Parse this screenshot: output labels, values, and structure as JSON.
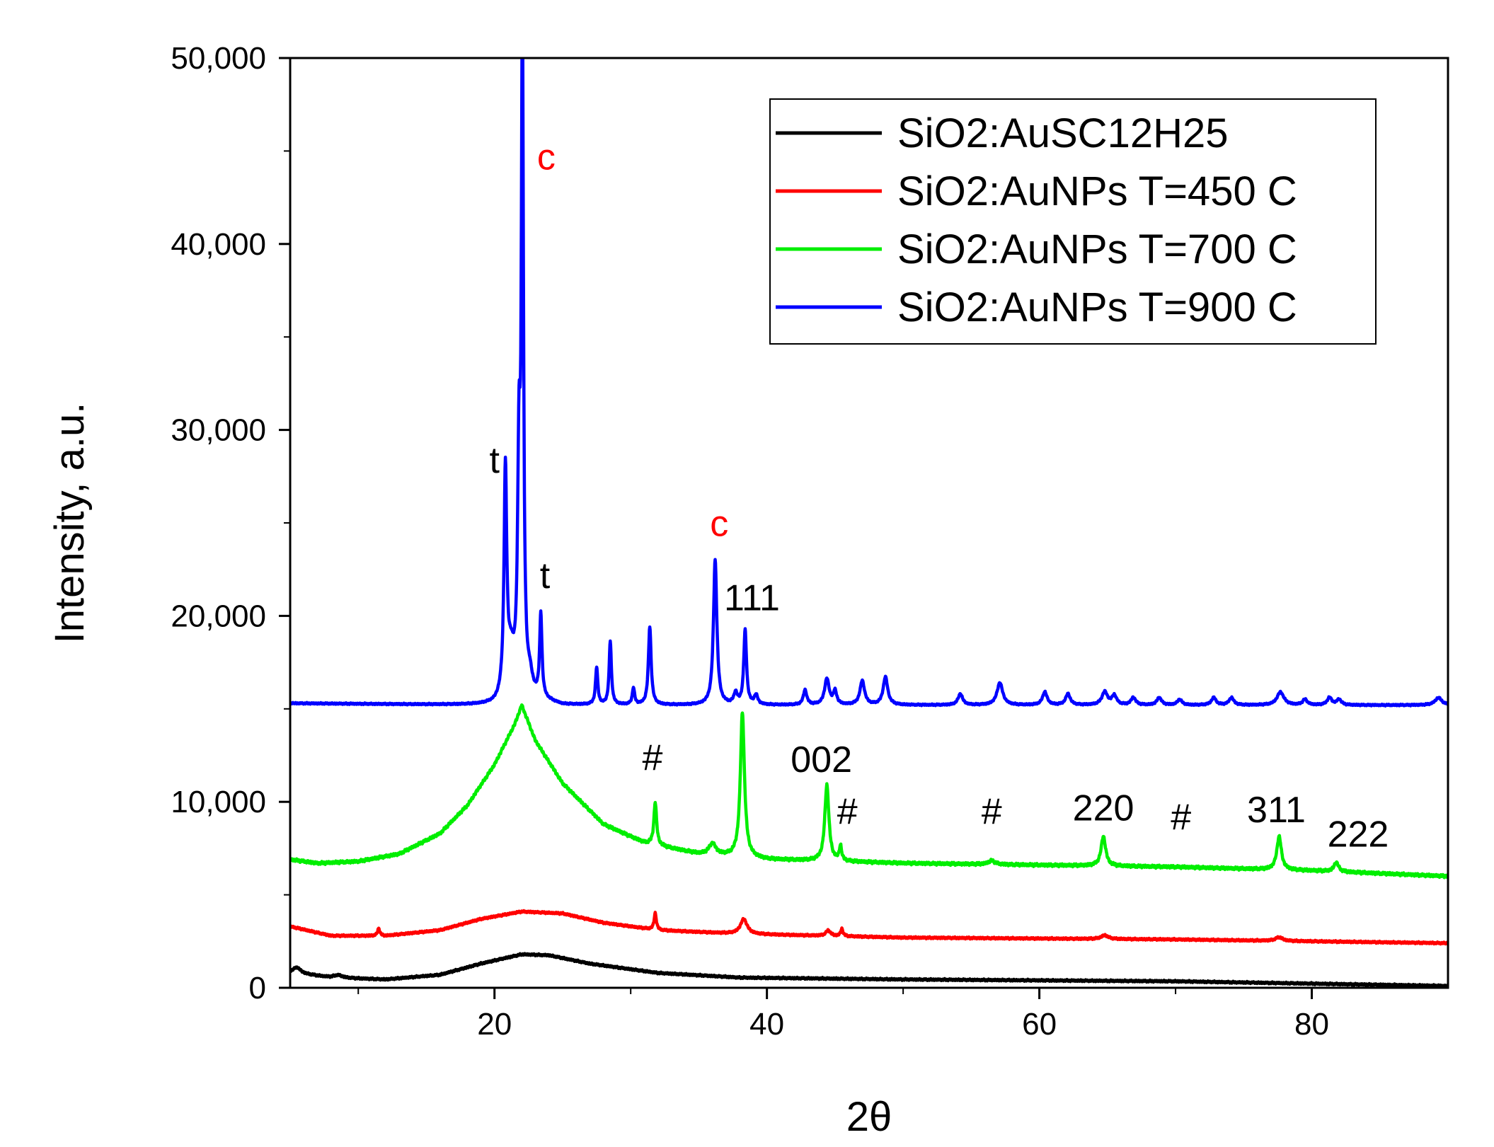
{
  "chart_data": {
    "type": "line",
    "title": "",
    "xlabel": "2θ",
    "ylabel": "Intensity, a.u.",
    "xlim": [
      5,
      90
    ],
    "ylim": [
      0,
      50000
    ],
    "x_ticks": [
      20,
      40,
      60,
      80
    ],
    "x_tick_labels": [
      "20",
      "40",
      "60",
      "80"
    ],
    "y_ticks": [
      0,
      10000,
      20000,
      30000,
      40000,
      50000
    ],
    "y_tick_labels": [
      "0",
      "10,000",
      "20,000",
      "30,000",
      "40,000",
      "50,000"
    ],
    "grid": false,
    "legend_position": "top-right",
    "series": [
      {
        "name": "SiO2:AuSC12H25",
        "color": "#000000",
        "baseline": [
          [
            5,
            850
          ],
          [
            8,
            550
          ],
          [
            12,
            450
          ],
          [
            16,
            700
          ],
          [
            19,
            1300
          ],
          [
            22,
            1800
          ],
          [
            24,
            1750
          ],
          [
            27,
            1300
          ],
          [
            32,
            800
          ],
          [
            38,
            550
          ],
          [
            50,
            450
          ],
          [
            70,
            350
          ],
          [
            90,
            100
          ]
        ],
        "peaks": [
          [
            5.5,
            300,
            0.3
          ],
          [
            8.5,
            150,
            0.4
          ]
        ]
      },
      {
        "name": "SiO2:AuNPs T=450 C",
        "color": "#ff0000",
        "baseline": [
          [
            5,
            3300
          ],
          [
            8,
            2800
          ],
          [
            12,
            2800
          ],
          [
            16,
            3100
          ],
          [
            19,
            3700
          ],
          [
            22,
            4100
          ],
          [
            25,
            4000
          ],
          [
            28,
            3500
          ],
          [
            32,
            3100
          ],
          [
            38,
            2900
          ],
          [
            50,
            2700
          ],
          [
            70,
            2600
          ],
          [
            90,
            2400
          ]
        ],
        "peaks": [
          [
            11.5,
            400,
            0.1
          ],
          [
            31.8,
            900,
            0.1
          ],
          [
            38.3,
            800,
            0.3
          ],
          [
            44.5,
            300,
            0.2
          ],
          [
            45.5,
            400,
            0.1
          ],
          [
            64.8,
            200,
            0.3
          ],
          [
            77.6,
            200,
            0.3
          ]
        ]
      },
      {
        "name": "SiO2:AuNPs T=700 C",
        "color": "#00ee00",
        "baseline": [
          [
            5,
            6900
          ],
          [
            7,
            6700
          ],
          [
            10,
            6800
          ],
          [
            13,
            7200
          ],
          [
            16,
            8300
          ],
          [
            18,
            9800
          ],
          [
            20,
            12000
          ],
          [
            21.5,
            14200
          ],
          [
            22,
            15200
          ],
          [
            23,
            13300
          ],
          [
            25,
            11000
          ],
          [
            28,
            8800
          ],
          [
            31,
            7800
          ],
          [
            35,
            7200
          ],
          [
            40,
            6900
          ],
          [
            50,
            6700
          ],
          [
            60,
            6600
          ],
          [
            70,
            6500
          ],
          [
            80,
            6300
          ],
          [
            90,
            6000
          ]
        ],
        "peaks": [
          [
            31.8,
            2300,
            0.12
          ],
          [
            36,
            600,
            0.3
          ],
          [
            38.2,
            7800,
            0.18
          ],
          [
            44.4,
            4100,
            0.18
          ],
          [
            45.4,
            800,
            0.1
          ],
          [
            56.5,
            200,
            0.3
          ],
          [
            64.7,
            1600,
            0.2
          ],
          [
            77.6,
            1800,
            0.2
          ],
          [
            81.8,
            500,
            0.2
          ]
        ]
      },
      {
        "name": "SiO2:AuNPs T=900 C",
        "color": "#0000ff",
        "baseline": [
          [
            5,
            15300
          ],
          [
            20,
            15200
          ],
          [
            21.5,
            15600
          ],
          [
            22.5,
            15600
          ],
          [
            25,
            15200
          ],
          [
            90,
            15200
          ]
        ],
        "peaks": [
          [
            20.8,
            12000,
            0.12
          ],
          [
            21.2,
            2000,
            0.3
          ],
          [
            21.8,
            12000,
            0.12
          ],
          [
            22.05,
            36000,
            0.09
          ],
          [
            22.6,
            800,
            0.2
          ],
          [
            23.4,
            4500,
            0.1
          ],
          [
            27.5,
            2000,
            0.1
          ],
          [
            28.5,
            3400,
            0.1
          ],
          [
            30.2,
            900,
            0.1
          ],
          [
            31.4,
            4200,
            0.12
          ],
          [
            36.2,
            7800,
            0.15
          ],
          [
            37.7,
            600,
            0.15
          ],
          [
            38.4,
            4000,
            0.12
          ],
          [
            39.2,
            500,
            0.15
          ],
          [
            42.8,
            800,
            0.15
          ],
          [
            44.4,
            1400,
            0.2
          ],
          [
            45,
            700,
            0.15
          ],
          [
            47,
            1300,
            0.2
          ],
          [
            48.7,
            1500,
            0.2
          ],
          [
            54.2,
            600,
            0.2
          ],
          [
            57.1,
            1200,
            0.25
          ],
          [
            60.4,
            700,
            0.2
          ],
          [
            62.1,
            600,
            0.2
          ],
          [
            64.8,
            700,
            0.25
          ],
          [
            65.5,
            500,
            0.2
          ],
          [
            66.9,
            400,
            0.2
          ],
          [
            68.8,
            400,
            0.2
          ],
          [
            70.3,
            300,
            0.2
          ],
          [
            72.8,
            400,
            0.2
          ],
          [
            74.1,
            400,
            0.2
          ],
          [
            77.7,
            700,
            0.3
          ],
          [
            79.5,
            300,
            0.2
          ],
          [
            81.3,
            400,
            0.2
          ],
          [
            82,
            300,
            0.2
          ],
          [
            89.3,
            400,
            0.3
          ]
        ]
      }
    ],
    "annotations": [
      {
        "text": "c",
        "x": 23.8,
        "y": 44000,
        "color": "#ff0000"
      },
      {
        "text": "t",
        "x": 20.0,
        "y": 27700,
        "color": "#000000"
      },
      {
        "text": "t",
        "x": 23.7,
        "y": 21500,
        "color": "#000000"
      },
      {
        "text": "c",
        "x": 36.5,
        "y": 24300,
        "color": "#ff0000"
      },
      {
        "text": "111",
        "x": 38.9,
        "y": 20300,
        "color": "#000000"
      },
      {
        "text": "#",
        "x": 31.6,
        "y": 11700,
        "color": "#000000"
      },
      {
        "text": "002",
        "x": 44.0,
        "y": 11600,
        "color": "#000000"
      },
      {
        "text": "#",
        "x": 45.9,
        "y": 8800,
        "color": "#000000"
      },
      {
        "text": "#",
        "x": 56.5,
        "y": 8800,
        "color": "#000000"
      },
      {
        "text": "220",
        "x": 64.7,
        "y": 9000,
        "color": "#000000"
      },
      {
        "text": "#",
        "x": 70.4,
        "y": 8500,
        "color": "#000000"
      },
      {
        "text": "311",
        "x": 77.4,
        "y": 8900,
        "color": "#000000"
      },
      {
        "text": "222",
        "x": 83.4,
        "y": 7600,
        "color": "#000000"
      }
    ]
  }
}
